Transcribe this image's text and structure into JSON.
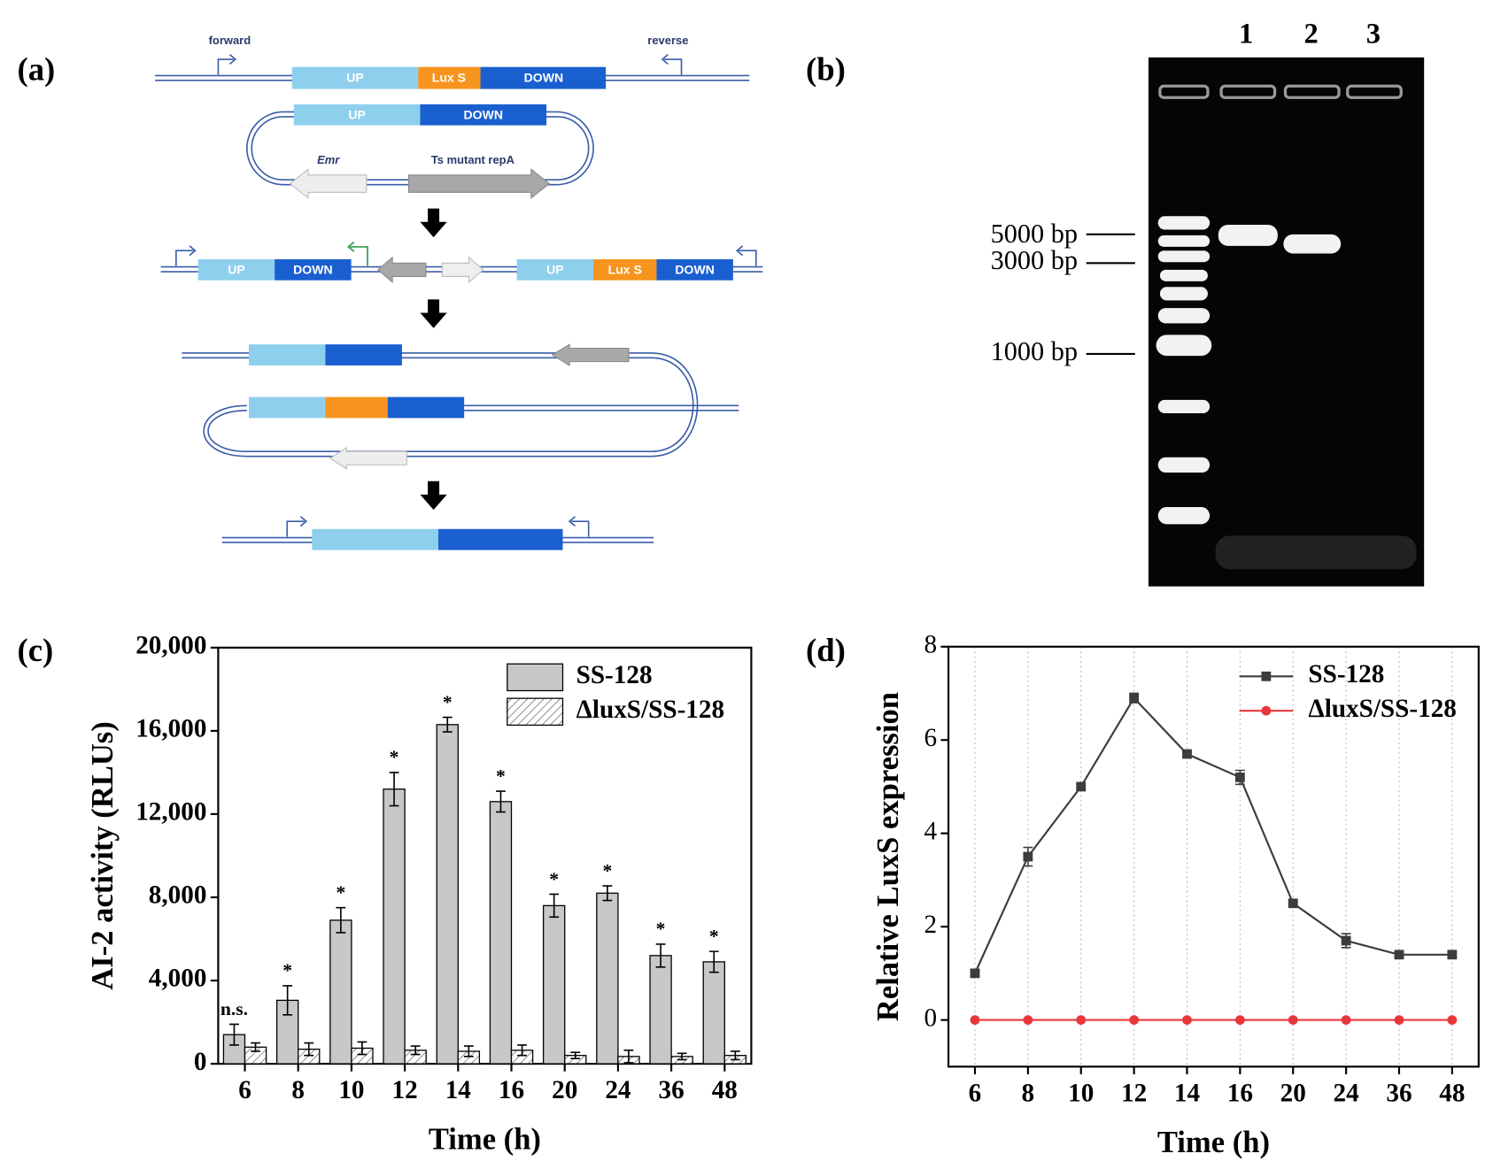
{
  "panels": [
    "(a)",
    "(b)",
    "(c)",
    "(d)"
  ],
  "diagram": {
    "forward": "forward",
    "reverse": "reverse",
    "row1": [
      "UP",
      "Lux S",
      "DOWN"
    ],
    "plasmid": [
      "UP",
      "DOWN"
    ],
    "plasmid_genes": [
      "Emr",
      "Ts mutant repA"
    ],
    "row2": [
      "UP",
      "DOWN",
      "UP",
      "Lux S",
      "DOWN"
    ]
  },
  "gel": {
    "lanes": [
      "1",
      "2",
      "3"
    ],
    "markers": [
      "5000 bp",
      "3000 bp",
      "1000 bp"
    ]
  },
  "chart_data": [
    {
      "type": "bar",
      "categories": [
        "6",
        "8",
        "10",
        "12",
        "14",
        "16",
        "20",
        "24",
        "36",
        "48"
      ],
      "series": [
        {
          "name": "SS-128",
          "color": "#c8c8c8",
          "values": [
            1400,
            3050,
            6900,
            13200,
            16300,
            12600,
            7600,
            8200,
            5200,
            4900
          ],
          "errors": [
            500,
            700,
            600,
            800,
            350,
            500,
            550,
            350,
            550,
            500
          ]
        },
        {
          "name": "ΔluxS/SS-128",
          "color": "#ffffff",
          "pattern": "hatch",
          "values": [
            800,
            700,
            750,
            650,
            600,
            650,
            400,
            350,
            350,
            400
          ],
          "errors": [
            200,
            300,
            300,
            200,
            250,
            250,
            150,
            300,
            150,
            200
          ]
        }
      ],
      "annotations": [
        "n.s.",
        "*",
        "*",
        "*",
        "*",
        "*",
        "*",
        "*",
        "*",
        "*"
      ],
      "xlabel": "Time (h)",
      "ylabel": "AI-2 activity (RLUs)",
      "ylim": [
        0,
        20000
      ],
      "yticks": [
        0,
        {
          "value": 4000,
          "label": "4,000"
        },
        {
          "value": 8000,
          "label": "8,000"
        },
        {
          "value": 12000,
          "label": "12,000"
        },
        {
          "value": 16000,
          "label": "16,000"
        },
        {
          "value": 20000,
          "label": "20,000"
        }
      ],
      "legend": "upper right"
    },
    {
      "type": "line",
      "categories": [
        "6",
        "8",
        "10",
        "12",
        "14",
        "16",
        "20",
        "24",
        "36",
        "48"
      ],
      "series": [
        {
          "name": "SS-128",
          "color": "#3c3c3c",
          "marker": "square",
          "values": [
            1.0,
            3.5,
            5.0,
            6.9,
            5.7,
            5.2,
            2.5,
            1.7,
            1.4,
            1.4
          ],
          "errors": [
            0.05,
            0.2,
            0.05,
            0.1,
            0.05,
            0.15,
            0.05,
            0.15,
            0.05,
            0.05
          ]
        },
        {
          "name": "ΔluxS/SS-128",
          "color": "#e8373a",
          "marker": "circle",
          "values": [
            0,
            0,
            0,
            0,
            0,
            0,
            0,
            0,
            0,
            0
          ]
        }
      ],
      "xlabel": "Time (h)",
      "ylabel": "Relative LuxS expression",
      "ylim": [
        -1,
        8
      ],
      "yticks": [
        0,
        2,
        4,
        6,
        8
      ],
      "grid": "x",
      "legend": "upper right"
    }
  ]
}
